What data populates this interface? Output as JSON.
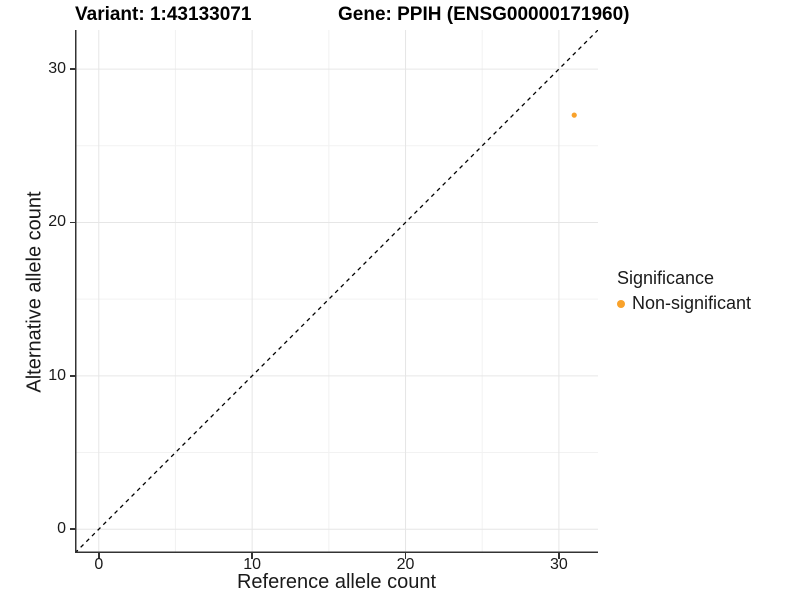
{
  "chart_data": {
    "type": "scatter",
    "titles": {
      "variant": "Variant: 1:43133071",
      "gene": "Gene: PPIH (ENSG00000171960)"
    },
    "xlabel": "Reference allele count",
    "ylabel": "Alternative allele count",
    "xlim": [
      -1.55,
      32.55
    ],
    "ylim": [
      -1.55,
      32.55
    ],
    "xticks": [
      0,
      10,
      20,
      30
    ],
    "yticks": [
      0,
      10,
      20,
      30
    ],
    "xminor": [
      5,
      15,
      25
    ],
    "yminor": [
      5,
      15,
      25
    ],
    "grid": true,
    "identity_line": {
      "type": "dashed",
      "color": "#000000",
      "from": -1.55,
      "to": 32.55
    },
    "series": [
      {
        "name": "Non-significant",
        "color": "#F9A22B",
        "points": [
          {
            "x": 31,
            "y": 27
          }
        ]
      }
    ],
    "legend": {
      "position": "right",
      "title": "Significance",
      "items": [
        {
          "label": "Non-significant",
          "color": "#F9A22B",
          "marker": "circle"
        }
      ]
    },
    "colors": {
      "background": "#FFFFFF",
      "grid_major": "#E6E6E6",
      "grid_minor": "#F2F2F2",
      "axis_line": "#333333",
      "tick_text": "#1A1A1A",
      "point": "#F9A22B"
    }
  }
}
